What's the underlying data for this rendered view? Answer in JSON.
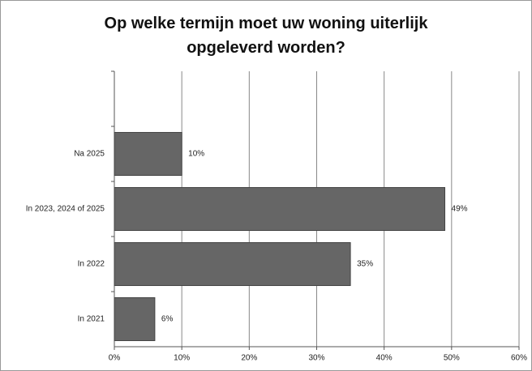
{
  "chart_data": {
    "type": "barh",
    "title": "Op welke termijn moet uw woning uiterlijk opgeleverd worden?",
    "categories": [
      null,
      "Na 2025",
      "In 2023, 2024 of 2025",
      "In 2022",
      "In 2021"
    ],
    "values": [
      null,
      10,
      49,
      35,
      6
    ],
    "value_labels": [
      null,
      "10%",
      "49%",
      "35%",
      "6%"
    ],
    "color": "#666666",
    "xlim": [
      0,
      60
    ],
    "xticks": [
      {
        "value": 0,
        "label": "0%"
      },
      {
        "value": 10,
        "label": "10%"
      },
      {
        "value": 20,
        "label": "20%"
      },
      {
        "value": 30,
        "label": "30%"
      },
      {
        "value": 40,
        "label": "40%"
      },
      {
        "value": 50,
        "label": "50%"
      },
      {
        "value": 60,
        "label": "60%"
      }
    ],
    "grid": true
  }
}
